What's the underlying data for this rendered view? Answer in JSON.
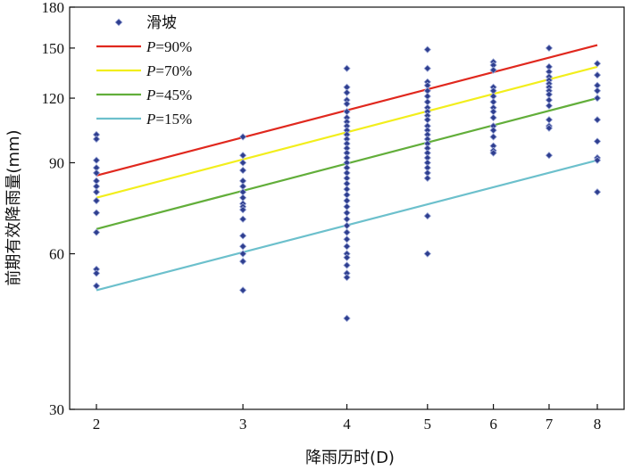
{
  "chart_data": {
    "type": "scatter",
    "xlabel": "降雨历时(D)",
    "ylabel": "前期有效降雨量(mm)",
    "x_scale": "log",
    "y_scale": "log",
    "xlim": [
      2,
      8
    ],
    "ylim": [
      30,
      180
    ],
    "x_ticks": [
      2,
      3,
      4,
      5,
      6,
      7,
      8
    ],
    "y_ticks": [
      30,
      60,
      90,
      120,
      150,
      180
    ],
    "legend_position": "top-left",
    "scatter": {
      "name": "滑坡",
      "color": "#2e3e8f",
      "points": [
        [
          2,
          102
        ],
        [
          2,
          100
        ],
        [
          2,
          91
        ],
        [
          2,
          88
        ],
        [
          2,
          86
        ],
        [
          2,
          83
        ],
        [
          2,
          81
        ],
        [
          2,
          79
        ],
        [
          2,
          76
        ],
        [
          2,
          72
        ],
        [
          2,
          66
        ],
        [
          2,
          56
        ],
        [
          2,
          55
        ],
        [
          2,
          52
        ],
        [
          3,
          101
        ],
        [
          3,
          93
        ],
        [
          3,
          90
        ],
        [
          3,
          87
        ],
        [
          3,
          83
        ],
        [
          3,
          81
        ],
        [
          3,
          79
        ],
        [
          3,
          77
        ],
        [
          3,
          75
        ],
        [
          3,
          74
        ],
        [
          3,
          73
        ],
        [
          3,
          70
        ],
        [
          3,
          65
        ],
        [
          3,
          62
        ],
        [
          3,
          60
        ],
        [
          3,
          58
        ],
        [
          3,
          51
        ],
        [
          4,
          137
        ],
        [
          4,
          126
        ],
        [
          4,
          123
        ],
        [
          4,
          119
        ],
        [
          4,
          117
        ],
        [
          4,
          113
        ],
        [
          4,
          110
        ],
        [
          4,
          108
        ],
        [
          4,
          106
        ],
        [
          4,
          104
        ],
        [
          4,
          102
        ],
        [
          4,
          100
        ],
        [
          4,
          98
        ],
        [
          4,
          96
        ],
        [
          4,
          94
        ],
        [
          4,
          92
        ],
        [
          4,
          90
        ],
        [
          4,
          88
        ],
        [
          4,
          86
        ],
        [
          4,
          84
        ],
        [
          4,
          82
        ],
        [
          4,
          80
        ],
        [
          4,
          78
        ],
        [
          4,
          76
        ],
        [
          4,
          74
        ],
        [
          4,
          72
        ],
        [
          4,
          70
        ],
        [
          4,
          68
        ],
        [
          4,
          66
        ],
        [
          4,
          64
        ],
        [
          4,
          62
        ],
        [
          4,
          60
        ],
        [
          4,
          59
        ],
        [
          4,
          57
        ],
        [
          4,
          55
        ],
        [
          4,
          54
        ],
        [
          4,
          45
        ],
        [
          5,
          149
        ],
        [
          5,
          137
        ],
        [
          5,
          129
        ],
        [
          5,
          127
        ],
        [
          5,
          124
        ],
        [
          5,
          121
        ],
        [
          5,
          118
        ],
        [
          5,
          115
        ],
        [
          5,
          113
        ],
        [
          5,
          111
        ],
        [
          5,
          109
        ],
        [
          5,
          106
        ],
        [
          5,
          104
        ],
        [
          5,
          102
        ],
        [
          5,
          100
        ],
        [
          5,
          98
        ],
        [
          5,
          96
        ],
        [
          5,
          94
        ],
        [
          5,
          92
        ],
        [
          5,
          90
        ],
        [
          5,
          88
        ],
        [
          5,
          86
        ],
        [
          5,
          84
        ],
        [
          5,
          71
        ],
        [
          5,
          60
        ],
        [
          6,
          141
        ],
        [
          6,
          139
        ],
        [
          6,
          136
        ],
        [
          6,
          126
        ],
        [
          6,
          124
        ],
        [
          6,
          121
        ],
        [
          6,
          118
        ],
        [
          6,
          115
        ],
        [
          6,
          113
        ],
        [
          6,
          110
        ],
        [
          6,
          106
        ],
        [
          6,
          104
        ],
        [
          6,
          101
        ],
        [
          6,
          97
        ],
        [
          6,
          95
        ],
        [
          6,
          94
        ],
        [
          7,
          150
        ],
        [
          7,
          138
        ],
        [
          7,
          135
        ],
        [
          7,
          132
        ],
        [
          7,
          130
        ],
        [
          7,
          128
        ],
        [
          7,
          126
        ],
        [
          7,
          124
        ],
        [
          7,
          122
        ],
        [
          7,
          119
        ],
        [
          7,
          116
        ],
        [
          7,
          109
        ],
        [
          7,
          106
        ],
        [
          7,
          105
        ],
        [
          7,
          93
        ],
        [
          8,
          140
        ],
        [
          8,
          133
        ],
        [
          8,
          127
        ],
        [
          8,
          124
        ],
        [
          8,
          120
        ],
        [
          8,
          109
        ],
        [
          8,
          99
        ],
        [
          8,
          92
        ],
        [
          8,
          91
        ],
        [
          8,
          79
        ]
      ]
    },
    "series": [
      {
        "name": "P=90%",
        "color": "#e0281e",
        "x": [
          2,
          8
        ],
        "y": [
          85,
          152
        ]
      },
      {
        "name": "P=70%",
        "color": "#f2ee1c",
        "x": [
          2,
          8
        ],
        "y": [
          77,
          138
        ]
      },
      {
        "name": "P=45%",
        "color": "#62ae3a",
        "x": [
          2,
          8
        ],
        "y": [
          67,
          120
        ]
      },
      {
        "name": "P=15%",
        "color": "#6cc0cc",
        "x": [
          2,
          8
        ],
        "y": [
          51,
          91
        ]
      }
    ]
  }
}
